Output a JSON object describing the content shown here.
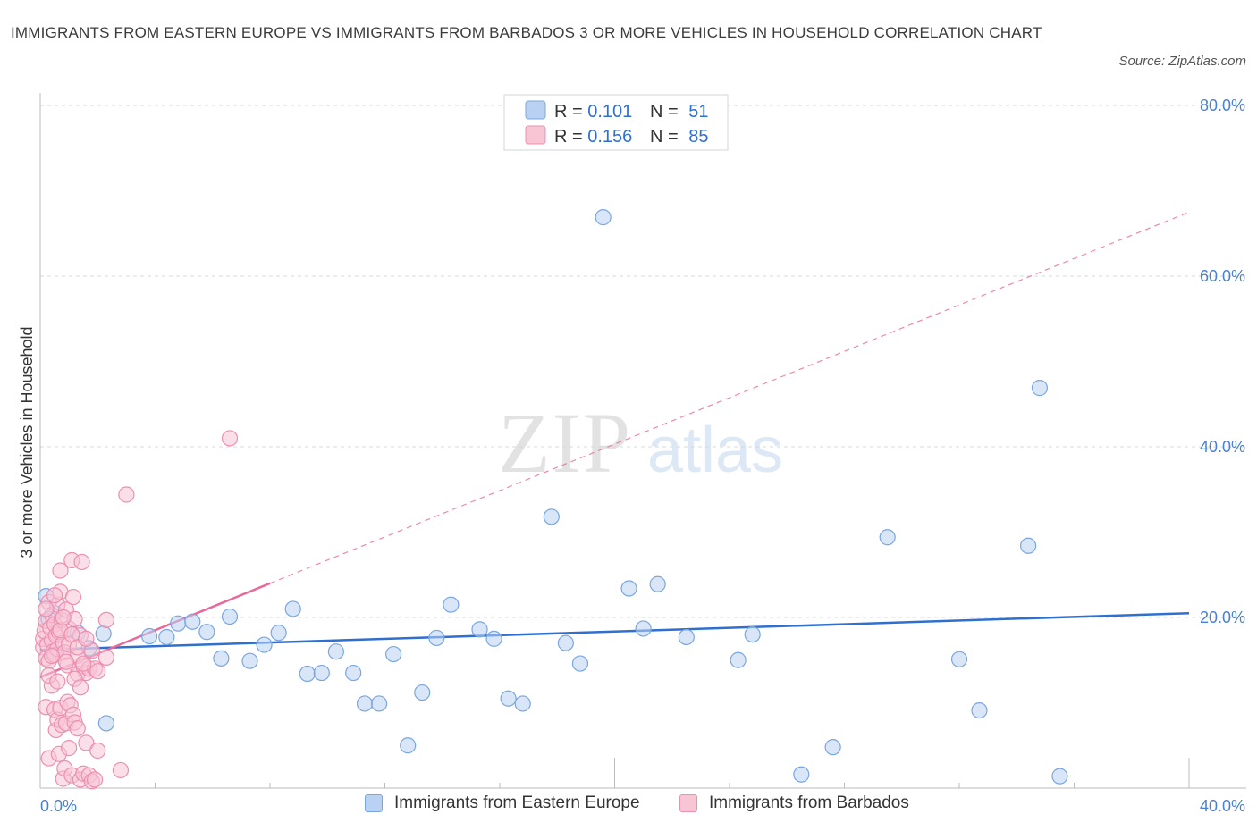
{
  "title": "IMMIGRANTS FROM EASTERN EUROPE VS IMMIGRANTS FROM BARBADOS 3 OR MORE VEHICLES IN HOUSEHOLD CORRELATION CHART",
  "source": "Source: ZipAtlas.com",
  "watermark": {
    "zip": "ZIP",
    "atlas": "atlas"
  },
  "colors": {
    "blue_fill": "#b9d2f3",
    "blue_stroke": "#7aa6e0",
    "blue_line": "#2f6fd0",
    "pink_fill": "#f8c5d5",
    "pink_stroke": "#ec8fb0",
    "pink_line": "#e8699a",
    "grid": "#d8d8d8",
    "tick_text": "#4a7fd4"
  },
  "stats_legend": [
    {
      "r_label": "R = ",
      "r_value": "0.101",
      "n_label": "N = ",
      "n_value": "51"
    },
    {
      "r_label": "R = ",
      "r_value": "0.156",
      "n_label": "N = ",
      "n_value": "85"
    }
  ],
  "chart_data": {
    "type": "scatter",
    "title": "IMMIGRANTS FROM EASTERN EUROPE VS IMMIGRANTS FROM BARBADOS 3 OR MORE VEHICLES IN HOUSEHOLD CORRELATION CHART",
    "xlabel": "",
    "ylabel": "3 or more Vehicles in Household",
    "xlim": [
      0,
      40
    ],
    "ylim": [
      0,
      80
    ],
    "x_tick_labels": [
      {
        "value": 0,
        "label": "0.0%"
      },
      {
        "value": 40,
        "label": "40.0%"
      }
    ],
    "y_tick_labels": [
      {
        "value": 20,
        "label": "20.0%"
      },
      {
        "value": 40,
        "label": "40.0%"
      },
      {
        "value": 60,
        "label": "60.0%"
      },
      {
        "value": 80,
        "label": "80.0%"
      }
    ],
    "series": [
      {
        "name": "Immigrants from Eastern Europe",
        "color": "blue",
        "R": 0.101,
        "N": 51,
        "trend": {
          "x0": 0,
          "y0": 16.2,
          "x1": 40,
          "y1": 20.5
        },
        "points": [
          [
            0.2,
            22.5
          ],
          [
            0.5,
            20.5
          ],
          [
            1.3,
            18.2
          ],
          [
            1.7,
            16.4
          ],
          [
            2.2,
            18.1
          ],
          [
            2.3,
            7.6
          ],
          [
            3.8,
            17.8
          ],
          [
            4.4,
            17.7
          ],
          [
            4.8,
            19.3
          ],
          [
            5.3,
            19.5
          ],
          [
            5.8,
            18.3
          ],
          [
            6.3,
            15.2
          ],
          [
            6.6,
            20.1
          ],
          [
            7.3,
            14.9
          ],
          [
            7.8,
            16.8
          ],
          [
            8.3,
            18.2
          ],
          [
            8.8,
            21.0
          ],
          [
            9.3,
            13.4
          ],
          [
            9.8,
            13.5
          ],
          [
            10.3,
            16.0
          ],
          [
            10.9,
            13.5
          ],
          [
            11.3,
            9.9
          ],
          [
            11.8,
            9.9
          ],
          [
            12.3,
            15.7
          ],
          [
            12.8,
            5.0
          ],
          [
            13.3,
            11.2
          ],
          [
            13.8,
            17.6
          ],
          [
            14.3,
            21.5
          ],
          [
            15.3,
            18.6
          ],
          [
            15.8,
            17.5
          ],
          [
            16.3,
            10.5
          ],
          [
            16.8,
            9.9
          ],
          [
            17.8,
            31.8
          ],
          [
            18.3,
            17.0
          ],
          [
            18.8,
            14.6
          ],
          [
            19.6,
            66.9
          ],
          [
            20.5,
            23.4
          ],
          [
            21.0,
            18.7
          ],
          [
            21.5,
            23.9
          ],
          [
            22.5,
            17.7
          ],
          [
            24.3,
            15.0
          ],
          [
            24.8,
            18.0
          ],
          [
            26.5,
            1.6
          ],
          [
            27.6,
            4.8
          ],
          [
            29.5,
            29.4
          ],
          [
            32.0,
            15.1
          ],
          [
            32.7,
            9.1
          ],
          [
            34.4,
            28.4
          ],
          [
            34.8,
            46.9
          ],
          [
            35.5,
            1.4
          ],
          [
            0.3,
            19.8
          ]
        ]
      },
      {
        "name": "Immigrants from Barbados",
        "color": "pink",
        "R": 0.156,
        "N": 85,
        "trend": {
          "x0": 0,
          "y0": 13.0,
          "x1": 8.0,
          "y1": 24.0
        },
        "trend_ext": {
          "x0": 8.0,
          "y0": 24.0,
          "x1": 40,
          "y1": 67.5
        },
        "points": [
          [
            0.1,
            16.5
          ],
          [
            0.1,
            17.5
          ],
          [
            0.15,
            18.4
          ],
          [
            0.2,
            15.2
          ],
          [
            0.2,
            19.6
          ],
          [
            0.25,
            16.8
          ],
          [
            0.3,
            21.8
          ],
          [
            0.3,
            14.9
          ],
          [
            0.35,
            18.8
          ],
          [
            0.4,
            17.3
          ],
          [
            0.4,
            20.3
          ],
          [
            0.45,
            16.0
          ],
          [
            0.5,
            19.2
          ],
          [
            0.5,
            15.6
          ],
          [
            0.55,
            17.9
          ],
          [
            0.6,
            21.5
          ],
          [
            0.6,
            16.3
          ],
          [
            0.65,
            18.3
          ],
          [
            0.7,
            25.5
          ],
          [
            0.7,
            23.0
          ],
          [
            0.75,
            19.7
          ],
          [
            0.8,
            17.0
          ],
          [
            0.85,
            15.9
          ],
          [
            0.9,
            20.9
          ],
          [
            0.95,
            14.4
          ],
          [
            1.0,
            18.7
          ],
          [
            1.1,
            26.7
          ],
          [
            1.15,
            22.4
          ],
          [
            1.2,
            19.8
          ],
          [
            1.3,
            15.5
          ],
          [
            1.3,
            13.4
          ],
          [
            1.4,
            17.9
          ],
          [
            1.45,
            26.5
          ],
          [
            1.5,
            14.3
          ],
          [
            1.6,
            13.5
          ],
          [
            1.7,
            14.0
          ],
          [
            1.8,
            16.1
          ],
          [
            1.9,
            14.0
          ],
          [
            2.0,
            13.7
          ],
          [
            2.3,
            19.7
          ],
          [
            2.3,
            15.3
          ],
          [
            0.2,
            9.5
          ],
          [
            0.3,
            3.5
          ],
          [
            0.4,
            12.0
          ],
          [
            0.5,
            9.2
          ],
          [
            0.55,
            6.8
          ],
          [
            0.6,
            8.0
          ],
          [
            0.65,
            4.0
          ],
          [
            0.7,
            9.4
          ],
          [
            0.75,
            7.4
          ],
          [
            0.8,
            1.1
          ],
          [
            0.85,
            2.3
          ],
          [
            0.9,
            7.6
          ],
          [
            0.95,
            10.1
          ],
          [
            1.0,
            4.7
          ],
          [
            1.05,
            9.7
          ],
          [
            1.1,
            1.5
          ],
          [
            1.15,
            8.6
          ],
          [
            1.2,
            7.7
          ],
          [
            1.3,
            7.0
          ],
          [
            1.4,
            1.0
          ],
          [
            1.5,
            1.7
          ],
          [
            1.6,
            5.3
          ],
          [
            1.7,
            1.5
          ],
          [
            1.8,
            0.8
          ],
          [
            1.9,
            1.0
          ],
          [
            2.0,
            4.4
          ],
          [
            2.8,
            2.1
          ],
          [
            3.0,
            34.4
          ],
          [
            6.6,
            41.0
          ],
          [
            0.2,
            21.0
          ],
          [
            0.3,
            13.2
          ],
          [
            0.4,
            15.5
          ],
          [
            0.5,
            22.6
          ],
          [
            0.6,
            12.5
          ],
          [
            0.7,
            18.5
          ],
          [
            0.8,
            20.0
          ],
          [
            0.9,
            14.8
          ],
          [
            1.0,
            16.8
          ],
          [
            1.1,
            18.0
          ],
          [
            1.2,
            12.8
          ],
          [
            1.3,
            16.5
          ],
          [
            1.4,
            11.8
          ],
          [
            1.5,
            14.6
          ],
          [
            1.6,
            17.5
          ]
        ]
      }
    ]
  }
}
